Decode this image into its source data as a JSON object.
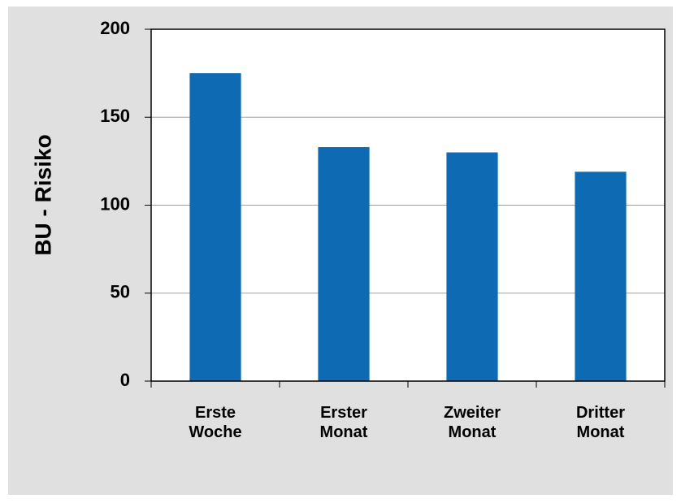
{
  "chart_data": {
    "type": "bar",
    "y_label": "BU - Risiko",
    "categories": [
      "Erste Woche",
      "Erster Monat",
      "Zweiter Monat",
      "Dritter Monat"
    ],
    "values": [
      175,
      133,
      130,
      119
    ],
    "color": "#0f6ab4",
    "ylim": [
      0,
      200
    ],
    "yticks": [
      0,
      50,
      100,
      150,
      200
    ],
    "grid": true
  }
}
